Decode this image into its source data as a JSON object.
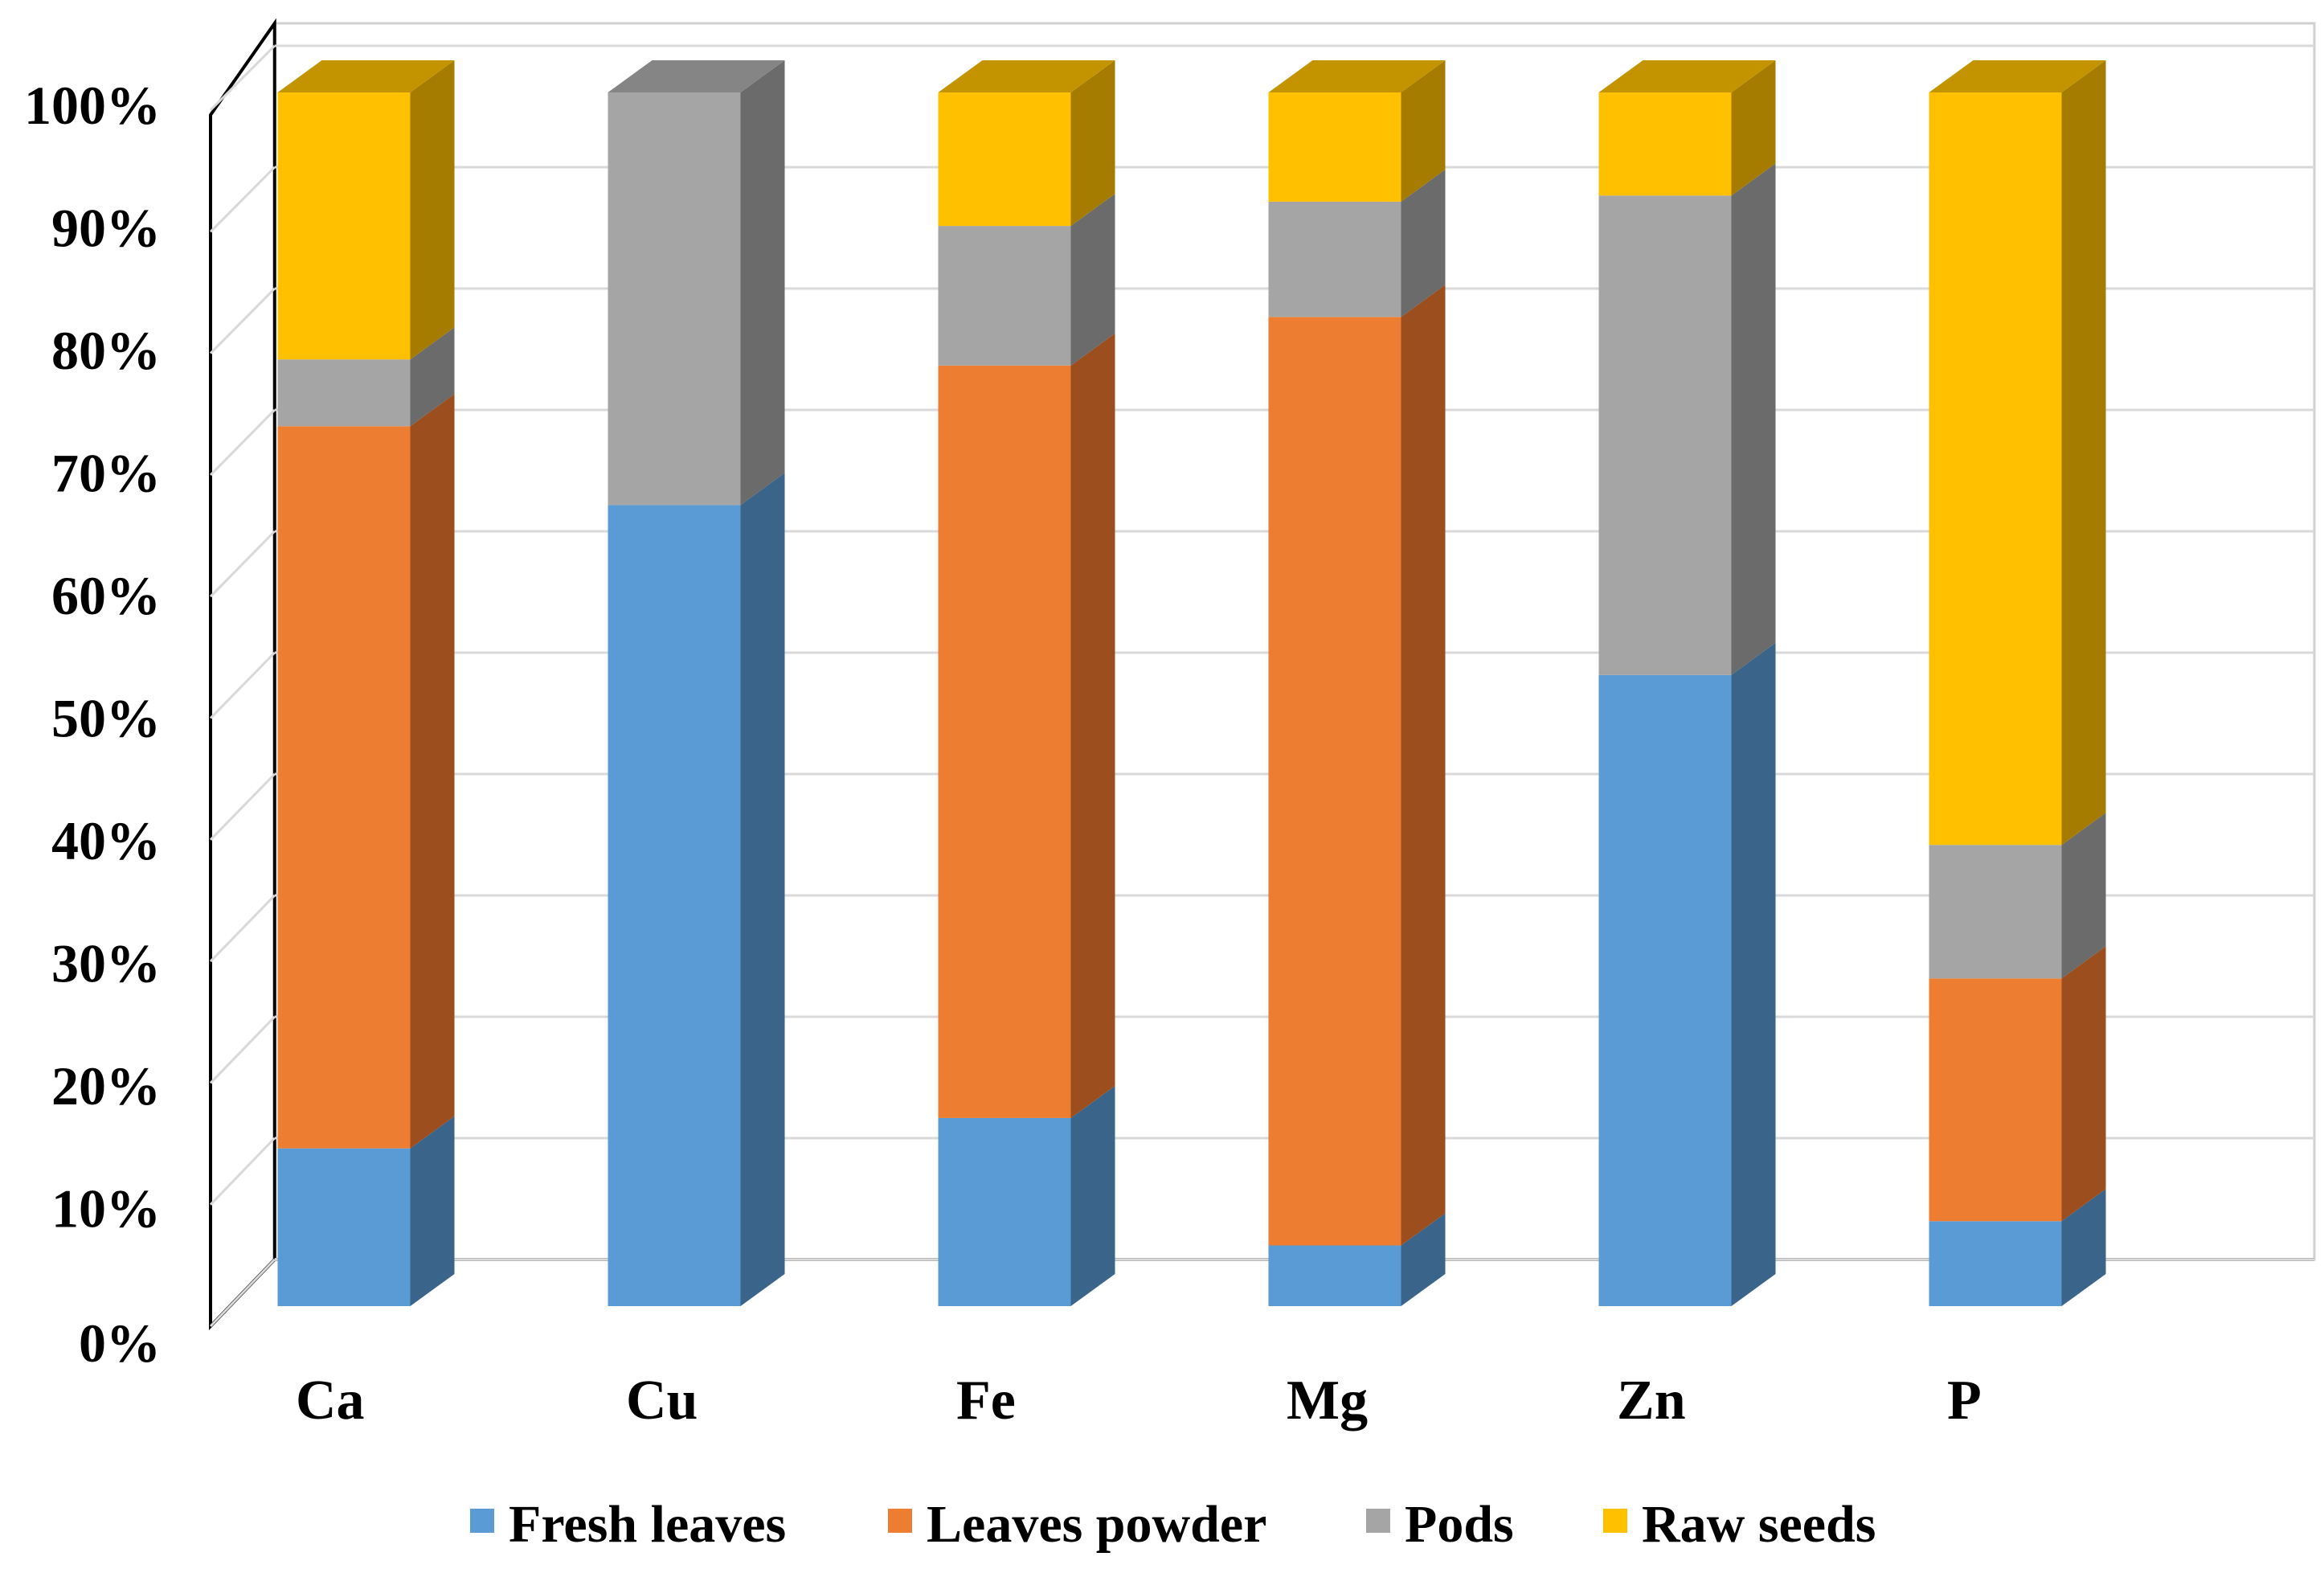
{
  "chart_data": {
    "type": "bar",
    "subtype": "stacked-100-3d",
    "title": "",
    "xlabel": "",
    "ylabel": "",
    "ylim": [
      0,
      100
    ],
    "y_ticks": [
      "0%",
      "10%",
      "20%",
      "30%",
      "40%",
      "50%",
      "60%",
      "70%",
      "80%",
      "90%",
      "100%"
    ],
    "grid": true,
    "legend_position": "bottom",
    "categories": [
      "Ca",
      "Cu",
      "Fe",
      "Mg",
      "Zn",
      "P"
    ],
    "series": [
      {
        "name": "Fresh leaves",
        "color": "#5B9BD5",
        "side_color": "#3A6489",
        "top_color": "#4A80B0",
        "values": [
          13,
          66,
          15.5,
          5,
          52,
          7
        ]
      },
      {
        "name": "Leaves powder",
        "color": "#ED7D31",
        "side_color": "#9C4E1E",
        "top_color": "#C96628",
        "values": [
          59.5,
          0,
          62,
          76.5,
          0,
          20
        ]
      },
      {
        "name": "Pods",
        "color": "#A5A5A5",
        "side_color": "#6B6B6B",
        "top_color": "#858585",
        "values": [
          5.5,
          34,
          11.5,
          9.5,
          39.5,
          11
        ]
      },
      {
        "name": "Raw seeds",
        "color": "#FFC000",
        "side_color": "#A67C00",
        "top_color": "#C49400",
        "values": [
          22,
          0,
          11,
          9,
          8.5,
          62
        ]
      }
    ]
  }
}
